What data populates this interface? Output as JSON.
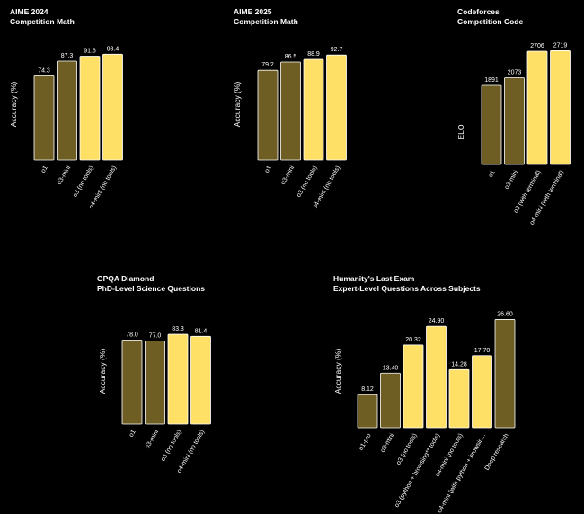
{
  "colors": {
    "background": "#000000",
    "dark_bar": "#6e5e24",
    "light_bar": "#ffe066",
    "bar_outline": "#ffffff",
    "text": "#ffffff"
  },
  "chart_data": [
    {
      "type": "bar",
      "title": "AIME 2024",
      "subtitle": "Competition Math",
      "ylabel": "Accuracy (%)",
      "categories": [
        "o1",
        "o3-mini",
        "o3 (no tools)",
        "o4-mini (no tools)"
      ],
      "values": [
        74.3,
        87.3,
        91.6,
        93.4
      ],
      "value_labels": [
        "74.3",
        "87.3",
        "91.6",
        "93.4"
      ],
      "bar_styles": [
        "dark",
        "dark",
        "light",
        "light"
      ],
      "ylim": [
        0,
        100
      ]
    },
    {
      "type": "bar",
      "title": "AIME 2025",
      "subtitle": "Competition Math",
      "ylabel": "Accuracy (%)",
      "categories": [
        "o1",
        "o3-mini",
        "o3 (no tools)",
        "o4-mini (no tools)"
      ],
      "values": [
        79.2,
        86.5,
        88.9,
        92.7
      ],
      "value_labels": [
        "79.2",
        "86.5",
        "88.9",
        "92.7"
      ],
      "bar_styles": [
        "dark",
        "dark",
        "light",
        "light"
      ],
      "ylim": [
        0,
        100
      ]
    },
    {
      "type": "bar",
      "title": "Codeforces",
      "subtitle": "Competition Code",
      "ylabel": "ELO",
      "categories": [
        "o1",
        "o3-mini",
        "o3 (with terminal)",
        "o4-mini (with terminal)"
      ],
      "values": [
        1891,
        2073,
        2706,
        2719
      ],
      "value_labels": [
        "1891",
        "2073",
        "2706",
        "2719"
      ],
      "bar_styles": [
        "dark",
        "dark",
        "light",
        "light"
      ],
      "ylim": [
        0,
        2900
      ]
    },
    {
      "type": "bar",
      "title": "GPQA Diamond",
      "subtitle": "PhD-Level Science Questions",
      "ylabel": "Accuracy (%)",
      "categories": [
        "o1",
        "o3-mini",
        "o3 (no tools)",
        "o4-mini (no tools)"
      ],
      "values": [
        78.0,
        77.0,
        83.3,
        81.4
      ],
      "value_labels": [
        "78.0",
        "77.0",
        "83.3",
        "81.4"
      ],
      "bar_styles": [
        "dark",
        "dark",
        "light",
        "light"
      ],
      "ylim": [
        0,
        100
      ]
    },
    {
      "type": "bar",
      "title": "Humanity's Last Exam",
      "subtitle": "Expert-Level Questions Across Subjects",
      "ylabel": "Accuracy (%)",
      "categories": [
        "o1-pro",
        "o3-mini",
        "o3 (no tools)",
        "o3 (python + browsing** tools)",
        "o4-mini (no tools)",
        "o4-mini (with python + browsin...",
        "Deep research"
      ],
      "values": [
        8.12,
        13.4,
        20.32,
        24.9,
        14.28,
        17.7,
        26.6
      ],
      "value_labels": [
        "8.12",
        "13.40",
        "20.32",
        "24.90",
        "14.28",
        "17.70",
        "26.60"
      ],
      "bar_styles": [
        "dark",
        "dark",
        "light",
        "light",
        "light",
        "light",
        "dark"
      ],
      "ylim": [
        0,
        30
      ]
    }
  ]
}
